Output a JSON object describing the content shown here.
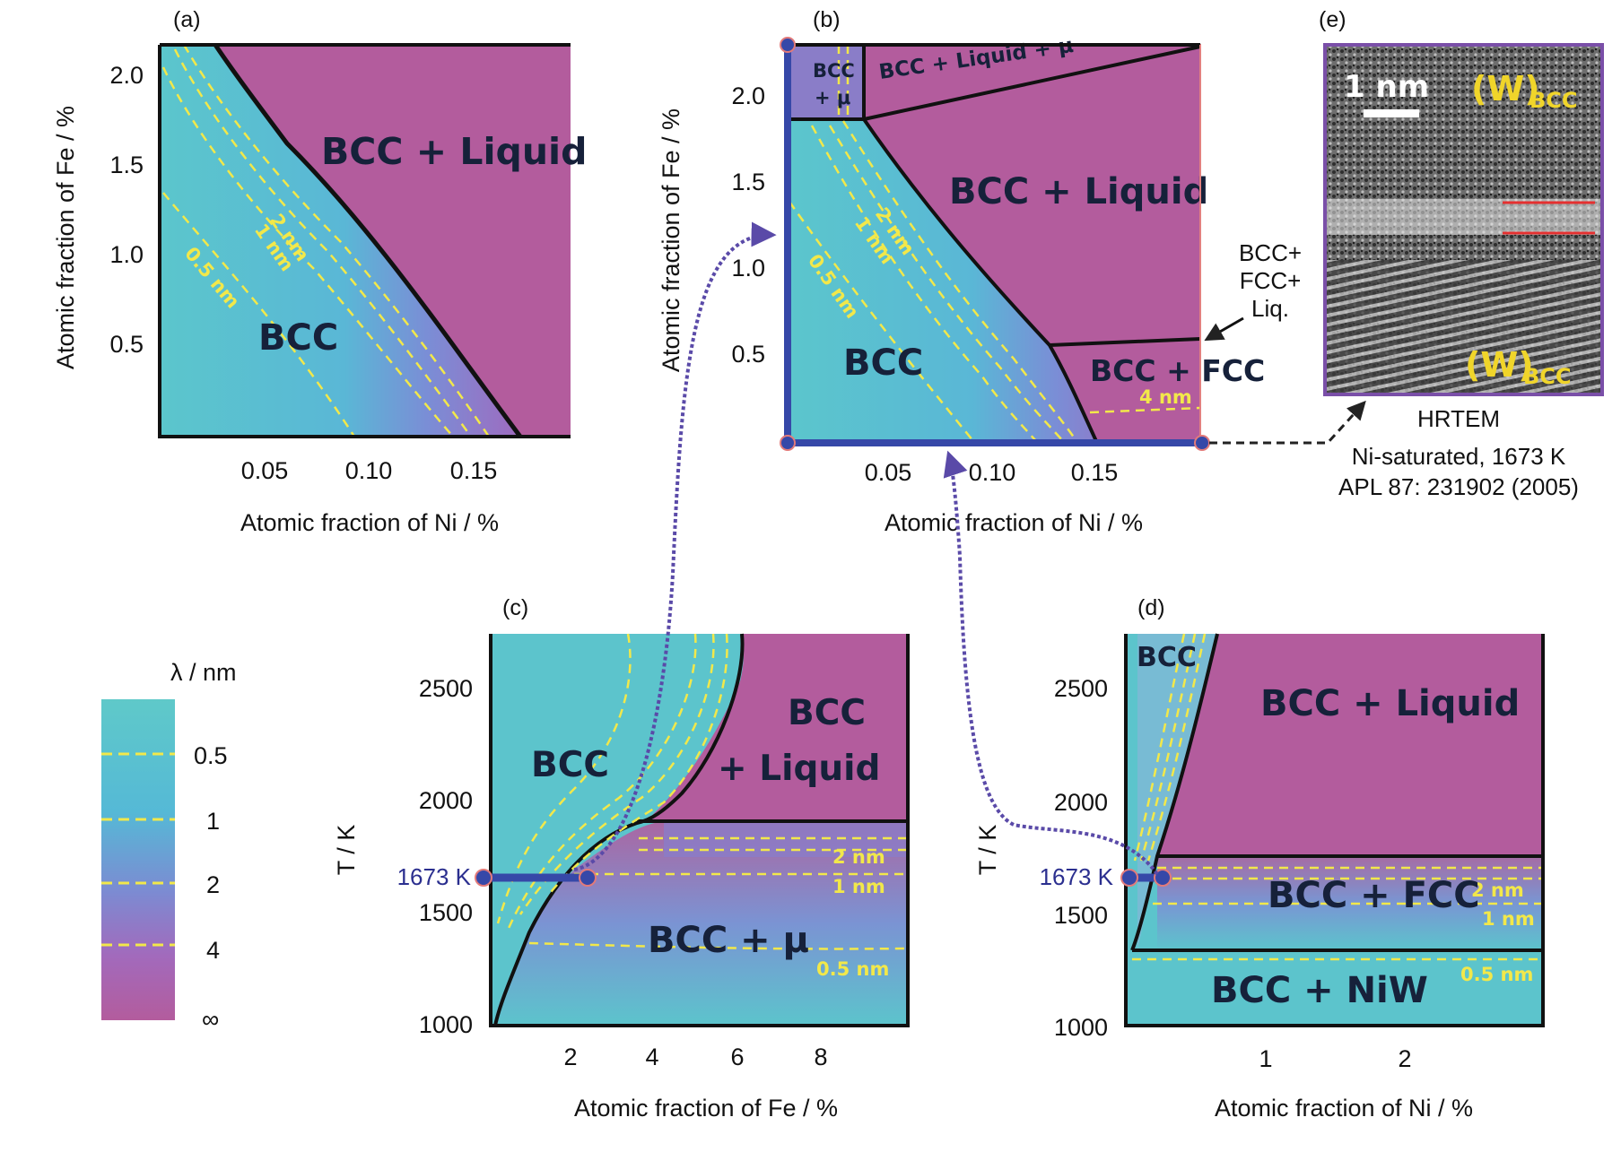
{
  "panels": {
    "a": {
      "label": "(a)",
      "ylabel": "Atomic fraction of Fe / %",
      "xlabel": "Atomic fraction of Ni / %",
      "xticks": [
        "0.05",
        "0.10",
        "0.15"
      ],
      "yticks": [
        "2.0",
        "1.5",
        "1.0",
        "0.5"
      ],
      "regions": {
        "liquid": "BCC + Liquid",
        "bcc": "BCC"
      },
      "contours": {
        "c2": "2 nm",
        "c1": "1 nm",
        "c05": "0.5 nm"
      }
    },
    "b": {
      "label": "(b)",
      "ylabel": "Atomic fraction of Fe / %",
      "xlabel": "Atomic fraction of Ni / %",
      "xticks": [
        "0.05",
        "0.10",
        "0.15"
      ],
      "yticks": [
        "2.0",
        "1.5",
        "1.0",
        "0.5"
      ],
      "regions": {
        "bccmu_1": "BCC",
        "bccmu_2": "+ μ",
        "liqmu": "BCC + Liquid + μ",
        "liquid": "BCC + Liquid",
        "bcc": "BCC",
        "fcc": "BCC + FCC"
      },
      "contours": {
        "c2": "2 nm",
        "c1": "1 nm",
        "c05": "0.5 nm",
        "c4": "4 nm"
      },
      "annotation": [
        "BCC+",
        "FCC+",
        "Liq."
      ]
    },
    "c": {
      "label": "(c)",
      "ylabel": "T / K",
      "xlabel": "Atomic fraction of Fe / %",
      "xticks": [
        "2",
        "4",
        "6",
        "8"
      ],
      "yticks": [
        "2500",
        "2000",
        "1500",
        "1000"
      ],
      "regions": {
        "bcc": "BCC",
        "liquid_1": "BCC",
        "liquid_2": "+ Liquid",
        "mu": "BCC + μ"
      },
      "contours": {
        "c2": "2 nm",
        "c1": "1 nm",
        "c05": "0.5 nm"
      },
      "marker": "1673 K"
    },
    "d": {
      "label": "(d)",
      "ylabel": "T / K",
      "xlabel": "Atomic fraction of Ni / %",
      "xticks": [
        "1",
        "2"
      ],
      "yticks": [
        "2500",
        "2000",
        "1500",
        "1000"
      ],
      "regions": {
        "bcc": "BCC",
        "liquid": "BCC + Liquid",
        "fcc": "BCC + FCC",
        "niw": "BCC + NiW"
      },
      "contours": {
        "c2": "2 nm",
        "c1": "1 nm",
        "c05": "0.5 nm"
      },
      "marker": "1673 K"
    },
    "e": {
      "label": "(e)",
      "scalebar": "1 nm",
      "w_top": "(W)",
      "w_top_sub": "BCC",
      "w_bottom": "(W)",
      "w_bottom_sub": "BCC",
      "caption": [
        "HRTEM",
        "Ni-saturated, 1673 K",
        "APL 87: 231902 (2005)"
      ]
    }
  },
  "legend": {
    "title": "λ / nm",
    "levels": [
      "0.5",
      "1",
      "2",
      "4",
      "∞"
    ]
  },
  "colors": {
    "teal": "#5cc4cc",
    "blue": "#7e8ed4",
    "magenta": "#b35c9d",
    "contour": "#f2e84a",
    "marker": "#3648a8",
    "marker_outline": "#e27a7a",
    "arrow": "#5a4aa8"
  }
}
